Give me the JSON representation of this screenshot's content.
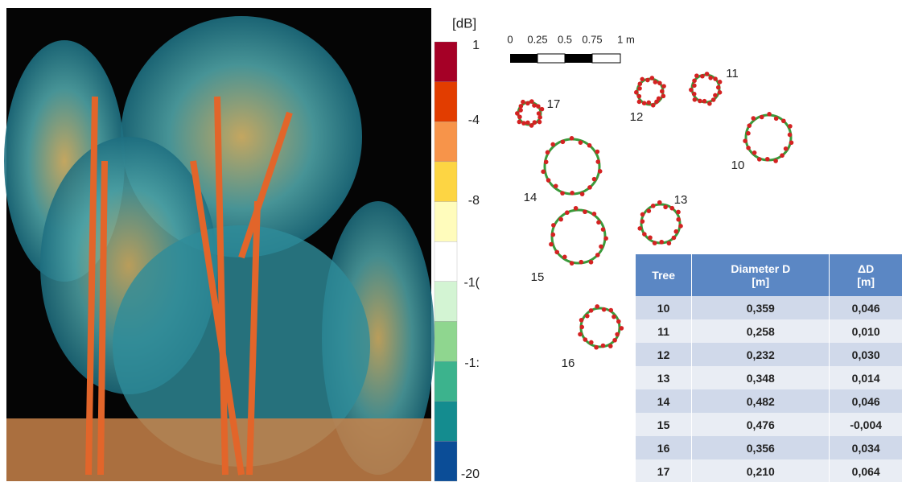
{
  "colorbar": {
    "unit": "[dB]",
    "ticks": [
      "1",
      "-4",
      "-8",
      "-1(",
      "-1:",
      "-20"
    ]
  },
  "scale_bar": {
    "labels": [
      "0",
      "0.25",
      "0.5",
      "0.75",
      "1 m"
    ]
  },
  "trees": [
    {
      "label": "17"
    },
    {
      "label": "12"
    },
    {
      "label": "11"
    },
    {
      "label": "10"
    },
    {
      "label": "14"
    },
    {
      "label": "13"
    },
    {
      "label": "15"
    },
    {
      "label": "16"
    }
  ],
  "table": {
    "header": [
      "Tree",
      "Diameter D\n[m]",
      "ΔD\n[m]"
    ],
    "rows": [
      [
        "10",
        "0,359",
        "0,046"
      ],
      [
        "11",
        "0,258",
        "0,010"
      ],
      [
        "12",
        "0,232",
        "0,030"
      ],
      [
        "13",
        "0,348",
        "0,014"
      ],
      [
        "14",
        "0,482",
        "0,046"
      ],
      [
        "15",
        "0,476",
        "-0,004"
      ],
      [
        "16",
        "0,356",
        "0,034"
      ],
      [
        "17",
        "0,210",
        "0,064"
      ]
    ]
  }
}
